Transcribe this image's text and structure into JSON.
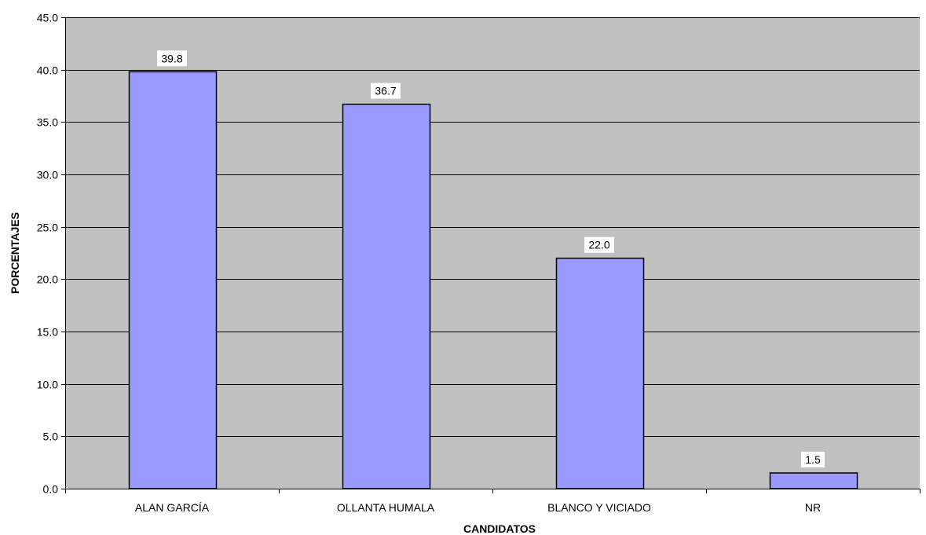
{
  "chart_data": {
    "type": "bar",
    "categories": [
      "ALAN GARCÍA",
      "OLLANTA HUMALA",
      "BLANCO Y VICIADO",
      "NR"
    ],
    "values": [
      39.8,
      36.7,
      22.0,
      1.5
    ],
    "data_labels": [
      "39.8",
      "36.7",
      "22.0",
      "1.5"
    ],
    "xlabel": "CANDIDATOS",
    "ylabel": "PORCENTAJES",
    "ylim": [
      0,
      45
    ],
    "yticks": [
      0,
      5,
      10,
      15,
      20,
      25,
      30,
      35,
      40,
      45
    ],
    "ytick_labels": [
      "0.0",
      "5.0",
      "10.0",
      "15.0",
      "20.0",
      "25.0",
      "30.0",
      "35.0",
      "40.0",
      "45.0"
    ],
    "grid": true,
    "legend": "none",
    "colors": {
      "bar_fill": "#9999ff",
      "bar_stroke": "#000000",
      "plot_background": "#c0c0c0",
      "gridline": "#000000",
      "label_background": "#ffffff"
    }
  }
}
